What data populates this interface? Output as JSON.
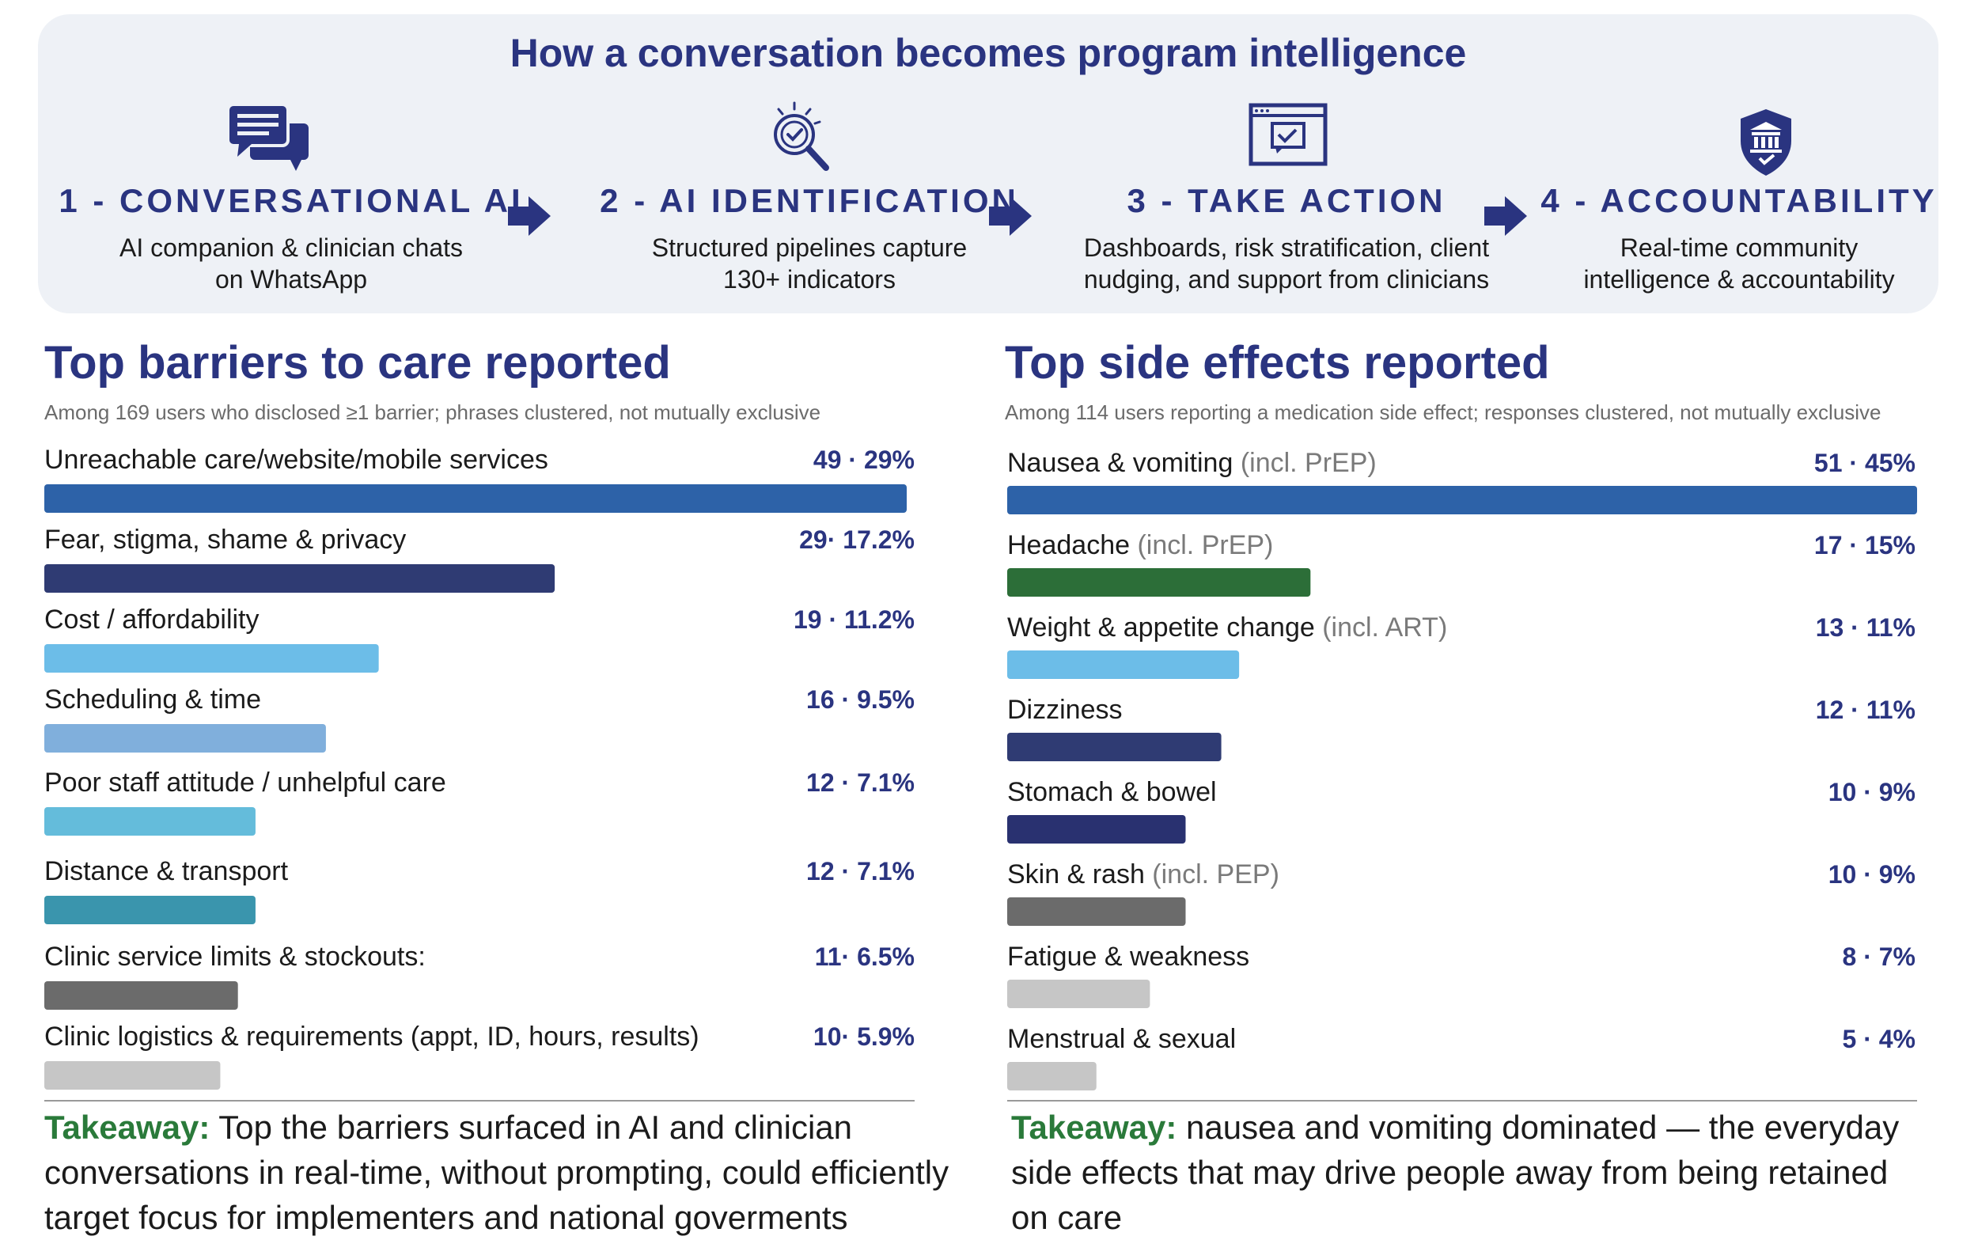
{
  "flow": {
    "title": "How a conversation becomes program intelligence",
    "steps": [
      {
        "title": "1 - CONVERSATIONAL AI",
        "desc": [
          "AI companion & clinician chats",
          "on WhatsApp"
        ],
        "icon": "chat-bubbles-icon"
      },
      {
        "title": "2 - AI IDENTIFICATION",
        "desc": [
          "Structured pipelines capture",
          "130+ indicators"
        ],
        "icon": "magnifier-check-icon"
      },
      {
        "title": "3 - TAKE ACTION",
        "desc": [
          "Dashboards, risk stratification, client",
          "nudging, and support from clinicians"
        ],
        "icon": "browser-check-icon"
      },
      {
        "title": "4 - ACCOUNTABILITY",
        "desc": [
          "Real-time community",
          "intelligence & accountability"
        ],
        "icon": "shield-building-icon"
      }
    ],
    "arrow_icon": "arrow-right-icon"
  },
  "chart_data": [
    {
      "type": "bar",
      "orientation": "horizontal",
      "title": "Top barriers to care reported",
      "subtitle": "Among 169 users who disclosed ≥1 barrier; phrases clustered, not mutually exclusive",
      "categories": [
        "Unreachable care/website/mobile services",
        "Fear, stigma, shame & privacy",
        "Cost / affordability",
        "Scheduling & time",
        "Poor staff attitude / unhelpful care",
        "Distance & transport",
        "Clinic service limits & stockouts:",
        "Clinic logistics & requirements (appt, ID, hours, results)"
      ],
      "notes": [
        "",
        "",
        "",
        "",
        "",
        "",
        "",
        ""
      ],
      "values": [
        49,
        29,
        19,
        16,
        12,
        12,
        11,
        10
      ],
      "labels": [
        "49 · 29%",
        "29· 17.2%",
        "19 · 11.2%",
        "16 · 9.5%",
        "12 · 7.1%",
        "12 · 7.1%",
        "11· 6.5%",
        "10· 5.9%"
      ],
      "colors": [
        "#2d62a8",
        "#2f3b73",
        "#6cbde8",
        "#80afdc",
        "#64bcdb",
        "#3a95ad",
        "#6b6b6b",
        "#c6c6c6"
      ],
      "xlim": [
        0,
        49
      ]
    },
    {
      "type": "bar",
      "orientation": "horizontal",
      "title": "Top side effects reported",
      "subtitle": "Among 114 users reporting a medication side effect; responses clustered, not mutually exclusive",
      "categories": [
        "Nausea & vomiting",
        "Headache",
        "Weight & appetite change",
        "Dizziness",
        "Stomach & bowel",
        "Skin & rash",
        "Fatigue & weakness",
        "Menstrual & sexual"
      ],
      "notes": [
        "(incl. PrEP)",
        "(incl. PrEP)",
        "(incl. ART)",
        "",
        "",
        "(incl. PEP)",
        "",
        ""
      ],
      "values": [
        51,
        17,
        13,
        12,
        10,
        10,
        8,
        5
      ],
      "labels": [
        "51 · 45%",
        "17 · 15%",
        "13 · 11%",
        "12 · 11%",
        "10 · 9%",
        "10 · 9%",
        "8 · 7%",
        "5 · 4%"
      ],
      "colors": [
        "#2d62a8",
        "#2c6e38",
        "#6cbde8",
        "#2f3b73",
        "#293170",
        "#6b6b6b",
        "#c6c6c6",
        "#c6c6c6"
      ],
      "xlim": [
        0,
        51
      ]
    }
  ],
  "takeaways": [
    {
      "label": "Takeaway:",
      "text": " Top the barriers surfaced in AI and clinician conversations in real-time, without prompting, could efficiently target focus for implementers and national goverments"
    },
    {
      "label": "Takeaway:",
      "text": " nausea and vomiting dominated — the everyday side effects that may drive people away from being retained on care"
    }
  ],
  "colors": {
    "accent": "#2a3480",
    "takeaway": "#2a7a3a",
    "panel_bg": "#eef1f6"
  }
}
